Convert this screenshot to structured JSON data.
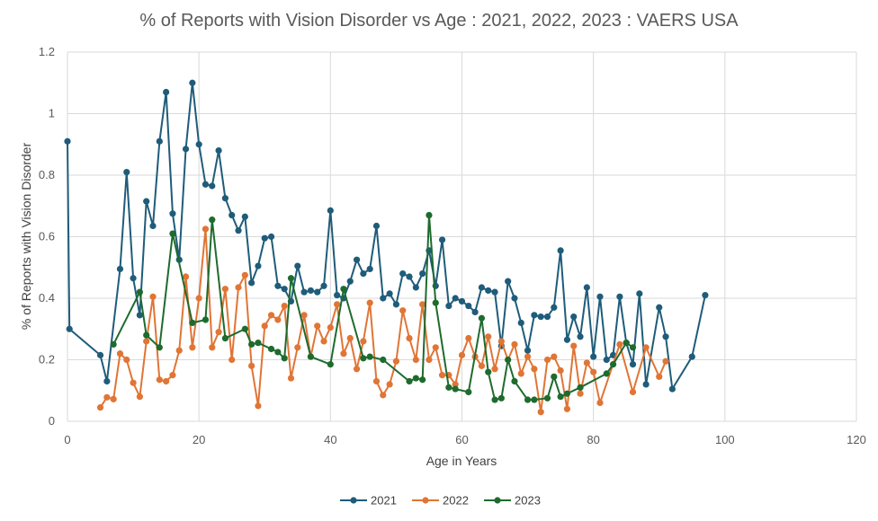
{
  "chart_data": {
    "type": "line",
    "title": "% of Reports with Vision Disorder vs Age : 2021, 2022, 2023 : VAERS USA",
    "xlabel": "Age in Years",
    "ylabel": "% of Reports with Vision Disorder",
    "xlim": [
      0,
      120
    ],
    "ylim": [
      0,
      1.2
    ],
    "xticks": [
      "0",
      "20",
      "40",
      "60",
      "80",
      "100",
      "120"
    ],
    "yticks": [
      "0",
      "0.2",
      "0.4",
      "0.6",
      "0.8",
      "1",
      "1.2"
    ],
    "grid": true,
    "legend_position": "bottom",
    "series": [
      {
        "name": "2021",
        "color": "#1f5c7a",
        "points": [
          [
            0,
            0.91
          ],
          [
            0.3,
            0.3
          ],
          [
            5,
            0.215
          ],
          [
            6,
            0.13
          ],
          [
            8,
            0.495
          ],
          [
            9,
            0.81
          ],
          [
            10,
            0.465
          ],
          [
            11,
            0.345
          ],
          [
            12,
            0.715
          ],
          [
            13,
            0.635
          ],
          [
            14,
            0.91
          ],
          [
            15,
            1.07
          ],
          [
            16,
            0.675
          ],
          [
            17,
            0.525
          ],
          [
            18,
            0.885
          ],
          [
            19,
            1.1
          ],
          [
            20,
            0.9
          ],
          [
            21,
            0.77
          ],
          [
            22,
            0.765
          ],
          [
            23,
            0.88
          ],
          [
            24,
            0.725
          ],
          [
            25,
            0.67
          ],
          [
            26,
            0.62
          ],
          [
            27,
            0.665
          ],
          [
            28,
            0.45
          ],
          [
            29,
            0.505
          ],
          [
            30,
            0.595
          ],
          [
            31,
            0.6
          ],
          [
            32,
            0.44
          ],
          [
            33,
            0.43
          ],
          [
            34,
            0.39
          ],
          [
            35,
            0.505
          ],
          [
            36,
            0.42
          ],
          [
            37,
            0.425
          ],
          [
            38,
            0.42
          ],
          [
            39,
            0.44
          ],
          [
            40,
            0.685
          ],
          [
            41,
            0.41
          ],
          [
            42,
            0.4
          ],
          [
            43,
            0.455
          ],
          [
            44,
            0.525
          ],
          [
            45,
            0.48
          ],
          [
            46,
            0.495
          ],
          [
            47,
            0.635
          ],
          [
            48,
            0.4
          ],
          [
            49,
            0.415
          ],
          [
            50,
            0.38
          ],
          [
            51,
            0.48
          ],
          [
            52,
            0.47
          ],
          [
            53,
            0.435
          ],
          [
            54,
            0.48
          ],
          [
            55,
            0.555
          ],
          [
            56,
            0.44
          ],
          [
            57,
            0.59
          ],
          [
            58,
            0.375
          ],
          [
            59,
            0.4
          ],
          [
            60,
            0.39
          ],
          [
            61,
            0.375
          ],
          [
            62,
            0.355
          ],
          [
            63,
            0.435
          ],
          [
            64,
            0.425
          ],
          [
            65,
            0.42
          ],
          [
            66,
            0.245
          ],
          [
            67,
            0.455
          ],
          [
            68,
            0.4
          ],
          [
            69,
            0.32
          ],
          [
            70,
            0.23
          ],
          [
            71,
            0.345
          ],
          [
            72,
            0.34
          ],
          [
            73,
            0.34
          ],
          [
            74,
            0.37
          ],
          [
            75,
            0.555
          ],
          [
            76,
            0.265
          ],
          [
            77,
            0.34
          ],
          [
            78,
            0.275
          ],
          [
            79,
            0.435
          ],
          [
            80,
            0.21
          ],
          [
            81,
            0.405
          ],
          [
            82,
            0.2
          ],
          [
            83,
            0.215
          ],
          [
            84,
            0.405
          ],
          [
            85,
            0.255
          ],
          [
            86,
            0.185
          ],
          [
            87,
            0.415
          ],
          [
            88,
            0.12
          ],
          [
            90,
            0.37
          ],
          [
            91,
            0.275
          ],
          [
            92,
            0.105
          ],
          [
            95,
            0.21
          ],
          [
            97,
            0.41
          ]
        ]
      },
      {
        "name": "2022",
        "color": "#e07535",
        "points": [
          [
            5,
            0.045
          ],
          [
            6,
            0.078
          ],
          [
            7,
            0.072
          ],
          [
            8,
            0.22
          ],
          [
            9,
            0.2
          ],
          [
            10,
            0.125
          ],
          [
            11,
            0.08
          ],
          [
            12,
            0.26
          ],
          [
            13,
            0.405
          ],
          [
            14,
            0.135
          ],
          [
            15,
            0.13
          ],
          [
            16,
            0.15
          ],
          [
            17,
            0.23
          ],
          [
            18,
            0.47
          ],
          [
            19,
            0.24
          ],
          [
            20,
            0.4
          ],
          [
            21,
            0.625
          ],
          [
            22,
            0.24
          ],
          [
            23,
            0.29
          ],
          [
            24,
            0.43
          ],
          [
            25,
            0.2
          ],
          [
            26,
            0.435
          ],
          [
            27,
            0.475
          ],
          [
            28,
            0.18
          ],
          [
            29,
            0.05
          ],
          [
            30,
            0.31
          ],
          [
            31,
            0.345
          ],
          [
            32,
            0.33
          ],
          [
            33,
            0.375
          ],
          [
            34,
            0.14
          ],
          [
            35,
            0.24
          ],
          [
            36,
            0.345
          ],
          [
            37,
            0.21
          ],
          [
            38,
            0.31
          ],
          [
            39,
            0.26
          ],
          [
            40,
            0.305
          ],
          [
            41,
            0.38
          ],
          [
            42,
            0.22
          ],
          [
            43,
            0.27
          ],
          [
            44,
            0.17
          ],
          [
            45,
            0.26
          ],
          [
            46,
            0.385
          ],
          [
            47,
            0.13
          ],
          [
            48,
            0.085
          ],
          [
            49,
            0.12
          ],
          [
            50,
            0.195
          ],
          [
            51,
            0.36
          ],
          [
            52,
            0.27
          ],
          [
            53,
            0.2
          ],
          [
            54,
            0.38
          ],
          [
            55,
            0.2
          ],
          [
            56,
            0.24
          ],
          [
            57,
            0.15
          ],
          [
            58,
            0.15
          ],
          [
            59,
            0.12
          ],
          [
            60,
            0.215
          ],
          [
            61,
            0.27
          ],
          [
            62,
            0.21
          ],
          [
            63,
            0.18
          ],
          [
            64,
            0.275
          ],
          [
            65,
            0.17
          ],
          [
            66,
            0.26
          ],
          [
            67,
            0.2
          ],
          [
            68,
            0.25
          ],
          [
            69,
            0.155
          ],
          [
            70,
            0.21
          ],
          [
            71,
            0.17
          ],
          [
            72,
            0.03
          ],
          [
            73,
            0.2
          ],
          [
            74,
            0.21
          ],
          [
            75,
            0.165
          ],
          [
            76,
            0.04
          ],
          [
            77,
            0.245
          ],
          [
            78,
            0.09
          ],
          [
            79,
            0.19
          ],
          [
            80,
            0.16
          ],
          [
            81,
            0.06
          ],
          [
            84,
            0.25
          ],
          [
            86,
            0.095
          ],
          [
            88,
            0.24
          ],
          [
            90,
            0.145
          ],
          [
            91,
            0.195
          ]
        ]
      },
      {
        "name": "2023",
        "color": "#1e6b2e",
        "points": [
          [
            7,
            0.25
          ],
          [
            11,
            0.42
          ],
          [
            12,
            0.28
          ],
          [
            14,
            0.24
          ],
          [
            16,
            0.61
          ],
          [
            19,
            0.32
          ],
          [
            21,
            0.33
          ],
          [
            22,
            0.655
          ],
          [
            24,
            0.27
          ],
          [
            27,
            0.3
          ],
          [
            28,
            0.25
          ],
          [
            29,
            0.255
          ],
          [
            31,
            0.235
          ],
          [
            32,
            0.225
          ],
          [
            33,
            0.205
          ],
          [
            34,
            0.465
          ],
          [
            37,
            0.21
          ],
          [
            40,
            0.185
          ],
          [
            42,
            0.43
          ],
          [
            45,
            0.205
          ],
          [
            46,
            0.21
          ],
          [
            48,
            0.2
          ],
          [
            52,
            0.13
          ],
          [
            53,
            0.14
          ],
          [
            54,
            0.135
          ],
          [
            55,
            0.67
          ],
          [
            56,
            0.385
          ],
          [
            58,
            0.11
          ],
          [
            59,
            0.105
          ],
          [
            61,
            0.095
          ],
          [
            63,
            0.335
          ],
          [
            64,
            0.16
          ],
          [
            65,
            0.07
          ],
          [
            66,
            0.075
          ],
          [
            67,
            0.2
          ],
          [
            68,
            0.13
          ],
          [
            70,
            0.07
          ],
          [
            71,
            0.07
          ],
          [
            73,
            0.075
          ],
          [
            74,
            0.145
          ],
          [
            75,
            0.08
          ],
          [
            76,
            0.09
          ],
          [
            78,
            0.11
          ],
          [
            82,
            0.155
          ],
          [
            83,
            0.185
          ],
          [
            85,
            0.255
          ],
          [
            86,
            0.24
          ]
        ]
      }
    ]
  }
}
